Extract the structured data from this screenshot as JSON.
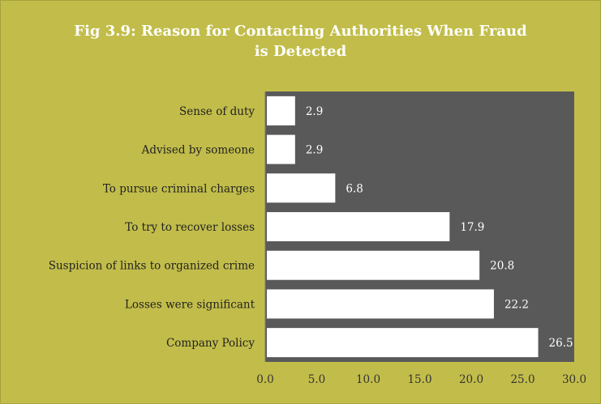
{
  "chart_data": {
    "type": "bar",
    "orientation": "horizontal",
    "title": "Fig 3.9: Reason for Contacting Authorities When Fraud is Detected",
    "title_lines": [
      "Fig 3.9: Reason for Contacting Authorities When Fraud",
      "is Detected"
    ],
    "categories": [
      "Sense of duty",
      "Advised by someone",
      "To pursue criminal charges",
      "To try to recover losses",
      "Suspicion of links to organized crime",
      "Losses were significant",
      "Company Policy"
    ],
    "values": [
      2.9,
      2.9,
      6.8,
      17.9,
      20.8,
      22.2,
      26.5
    ],
    "value_labels": [
      "2.9",
      "2.9",
      "6.8",
      "17.9",
      "20.8",
      "22.2",
      "26.5"
    ],
    "xlim": [
      0,
      30
    ],
    "xticks": [
      "0.0",
      "5.0",
      "10.0",
      "15.0",
      "20.0",
      "25.0",
      "30.0"
    ],
    "grid": false,
    "legend": "none",
    "colors": {
      "background": "#c2bd4a",
      "plot_area": "#595959",
      "bar": "#ffffff",
      "value_label": "#ffffff",
      "title": "#ffffff"
    }
  }
}
